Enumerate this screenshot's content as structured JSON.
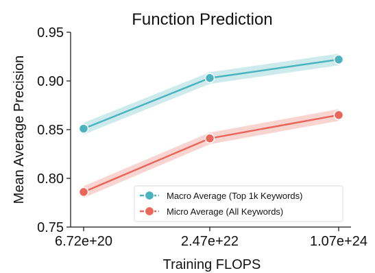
{
  "chart_data": {
    "type": "line",
    "title": "Function Prediction",
    "xlabel": "Training FLOPS",
    "ylabel": "Mean Average Precision",
    "categories": [
      "6.72e+20",
      "2.47e+22",
      "1.07e+24"
    ],
    "ylim": [
      0.75,
      0.95
    ],
    "yticks": [
      "0.75",
      "0.80",
      "0.85",
      "0.90",
      "0.95"
    ],
    "grid": false,
    "legend_position": "lower-right",
    "series": [
      {
        "name": "Macro Average (Top 1k Keywords)",
        "values": [
          0.851,
          0.903,
          0.922
        ],
        "band": [
          0.006,
          0.006,
          0.006
        ],
        "color": "#4BB3BF"
      },
      {
        "name": "Micro Average (All Keywords)",
        "values": [
          0.786,
          0.841,
          0.865
        ],
        "band": [
          0.006,
          0.006,
          0.006
        ],
        "color": "#E8675A"
      }
    ]
  }
}
